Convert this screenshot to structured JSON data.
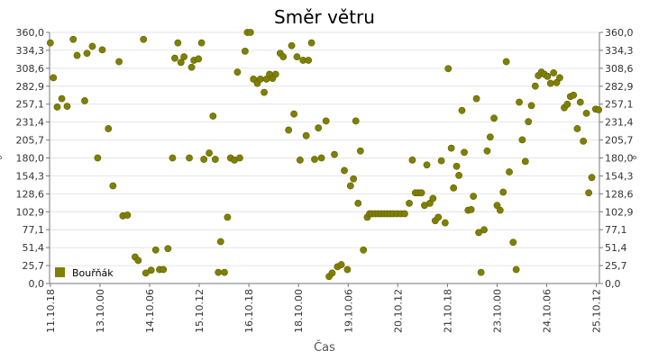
{
  "chart_data": {
    "type": "scatter",
    "title": "Směr větru",
    "xlabel": "Čas",
    "ylabel": "°",
    "ylim": [
      0,
      360
    ],
    "grid": true,
    "legend_position": "bottom-left",
    "y_ticks": [
      "0,0",
      "25,7",
      "51,4",
      "77,1",
      "102,9",
      "128,6",
      "154,3",
      "180,0",
      "205,7",
      "231,4",
      "257,1",
      "282,9",
      "308,6",
      "334,3",
      "360,0"
    ],
    "x_ticks": [
      "11.10.18",
      "13.10.00",
      "14.10.06",
      "15.10.12",
      "16.10.18",
      "18.10.00",
      "19.10.06",
      "20.10.12",
      "21.10.18",
      "23.10.00",
      "24.10.06",
      "25.10.12"
    ],
    "series": [
      {
        "name": "Bouřňák",
        "color": "#808000",
        "points": [
          [
            0.1,
            345
          ],
          [
            0.5,
            295
          ],
          [
            1,
            253
          ],
          [
            1.6,
            265
          ],
          [
            2.3,
            254
          ],
          [
            3.1,
            350
          ],
          [
            3.6,
            327
          ],
          [
            4.6,
            262
          ],
          [
            4.9,
            330
          ],
          [
            5.6,
            340
          ],
          [
            6.3,
            180
          ],
          [
            6.9,
            335
          ],
          [
            7.7,
            222
          ],
          [
            8.3,
            140
          ],
          [
            9.1,
            318
          ],
          [
            9.6,
            97
          ],
          [
            10.2,
            98
          ],
          [
            11.2,
            38
          ],
          [
            11.6,
            33
          ],
          [
            12.3,
            350
          ],
          [
            12.6,
            15
          ],
          [
            13.3,
            19
          ],
          [
            13.9,
            48
          ],
          [
            14.4,
            20
          ],
          [
            14.9,
            20
          ],
          [
            15.5,
            50
          ],
          [
            16.1,
            180
          ],
          [
            16.4,
            323
          ],
          [
            16.8,
            345
          ],
          [
            17.2,
            317
          ],
          [
            17.6,
            325
          ],
          [
            18.3,
            180
          ],
          [
            18.6,
            310
          ],
          [
            18.9,
            320
          ],
          [
            19.5,
            322
          ],
          [
            19.9,
            345
          ],
          [
            20.2,
            178
          ],
          [
            20.9,
            187
          ],
          [
            21.4,
            240
          ],
          [
            21.7,
            178
          ],
          [
            22.1,
            16
          ],
          [
            22.4,
            60
          ],
          [
            22.9,
            16
          ],
          [
            23.3,
            95
          ],
          [
            23.7,
            180
          ],
          [
            24.2,
            177
          ],
          [
            24.6,
            303
          ],
          [
            24.9,
            180
          ],
          [
            25.6,
            333
          ],
          [
            25.9,
            360
          ],
          [
            26.3,
            360
          ],
          [
            26.7,
            293
          ],
          [
            27.2,
            287
          ],
          [
            27.6,
            293
          ],
          [
            28.1,
            274
          ],
          [
            28.4,
            293
          ],
          [
            28.8,
            300
          ],
          [
            29.2,
            294
          ],
          [
            29.6,
            300
          ],
          [
            30.2,
            330
          ],
          [
            30.6,
            325
          ],
          [
            31.3,
            220
          ],
          [
            31.7,
            341
          ],
          [
            32,
            243
          ],
          [
            32.4,
            325
          ],
          [
            32.8,
            177
          ],
          [
            33.2,
            320
          ],
          [
            33.6,
            212
          ],
          [
            33.9,
            320
          ],
          [
            34.3,
            345
          ],
          [
            34.7,
            178
          ],
          [
            35.2,
            223
          ],
          [
            35.6,
            180
          ],
          [
            36.2,
            233
          ],
          [
            36.6,
            10
          ],
          [
            37,
            15
          ],
          [
            37.3,
            185
          ],
          [
            37.7,
            24
          ],
          [
            38.2,
            27
          ],
          [
            38.6,
            162
          ],
          [
            39,
            20
          ],
          [
            39.4,
            140
          ],
          [
            39.8,
            150
          ],
          [
            40.1,
            233
          ],
          [
            40.4,
            115
          ],
          [
            40.7,
            190
          ],
          [
            41.1,
            48
          ],
          [
            41.6,
            95
          ],
          [
            41.9,
            100
          ],
          [
            42.2,
            100
          ],
          [
            42.6,
            100
          ],
          [
            43,
            100
          ],
          [
            43.4,
            100
          ],
          [
            43.8,
            100
          ],
          [
            44.2,
            100
          ],
          [
            44.6,
            100
          ],
          [
            45,
            100
          ],
          [
            45.5,
            100
          ],
          [
            46,
            100
          ],
          [
            46.5,
            100
          ],
          [
            47.1,
            115
          ],
          [
            47.5,
            177
          ],
          [
            47.9,
            130
          ],
          [
            48.3,
            130
          ],
          [
            48.7,
            130
          ],
          [
            49.1,
            112
          ],
          [
            49.4,
            170
          ],
          [
            49.8,
            115
          ],
          [
            50.2,
            122
          ],
          [
            50.5,
            90
          ],
          [
            50.9,
            95
          ],
          [
            51.3,
            176
          ],
          [
            51.8,
            87
          ],
          [
            52.2,
            308
          ],
          [
            52.6,
            194
          ],
          [
            52.9,
            137
          ],
          [
            53.3,
            168
          ],
          [
            53.6,
            155
          ],
          [
            54,
            248
          ],
          [
            54.3,
            188
          ],
          [
            54.8,
            105
          ],
          [
            55.2,
            106
          ],
          [
            55.5,
            125
          ],
          [
            55.9,
            265
          ],
          [
            56.2,
            73
          ],
          [
            56.5,
            16
          ],
          [
            56.9,
            77
          ],
          [
            57.3,
            190
          ],
          [
            57.7,
            210
          ],
          [
            58.2,
            237
          ],
          [
            58.6,
            112
          ],
          [
            59,
            105
          ],
          [
            59.4,
            131
          ],
          [
            59.8,
            318
          ],
          [
            60.2,
            160
          ],
          [
            60.7,
            59
          ],
          [
            61.1,
            20
          ],
          [
            61.5,
            260
          ],
          [
            61.9,
            206
          ],
          [
            62.3,
            175
          ],
          [
            62.7,
            232
          ],
          [
            63.1,
            255
          ],
          [
            63.6,
            283
          ],
          [
            64,
            298
          ],
          [
            64.4,
            303
          ],
          [
            64.8,
            300
          ],
          [
            65.2,
            297
          ],
          [
            65.6,
            287
          ],
          [
            66,
            302
          ],
          [
            66.4,
            288
          ],
          [
            66.8,
            295
          ],
          [
            67.4,
            252
          ],
          [
            67.8,
            257
          ],
          [
            68.2,
            268
          ],
          [
            68.6,
            270
          ],
          [
            69.1,
            222
          ],
          [
            69.5,
            260
          ],
          [
            69.9,
            204
          ],
          [
            70.3,
            244
          ],
          [
            70.6,
            130
          ],
          [
            71,
            152
          ],
          [
            71.5,
            250
          ],
          [
            71.9,
            249
          ]
        ]
      }
    ]
  }
}
